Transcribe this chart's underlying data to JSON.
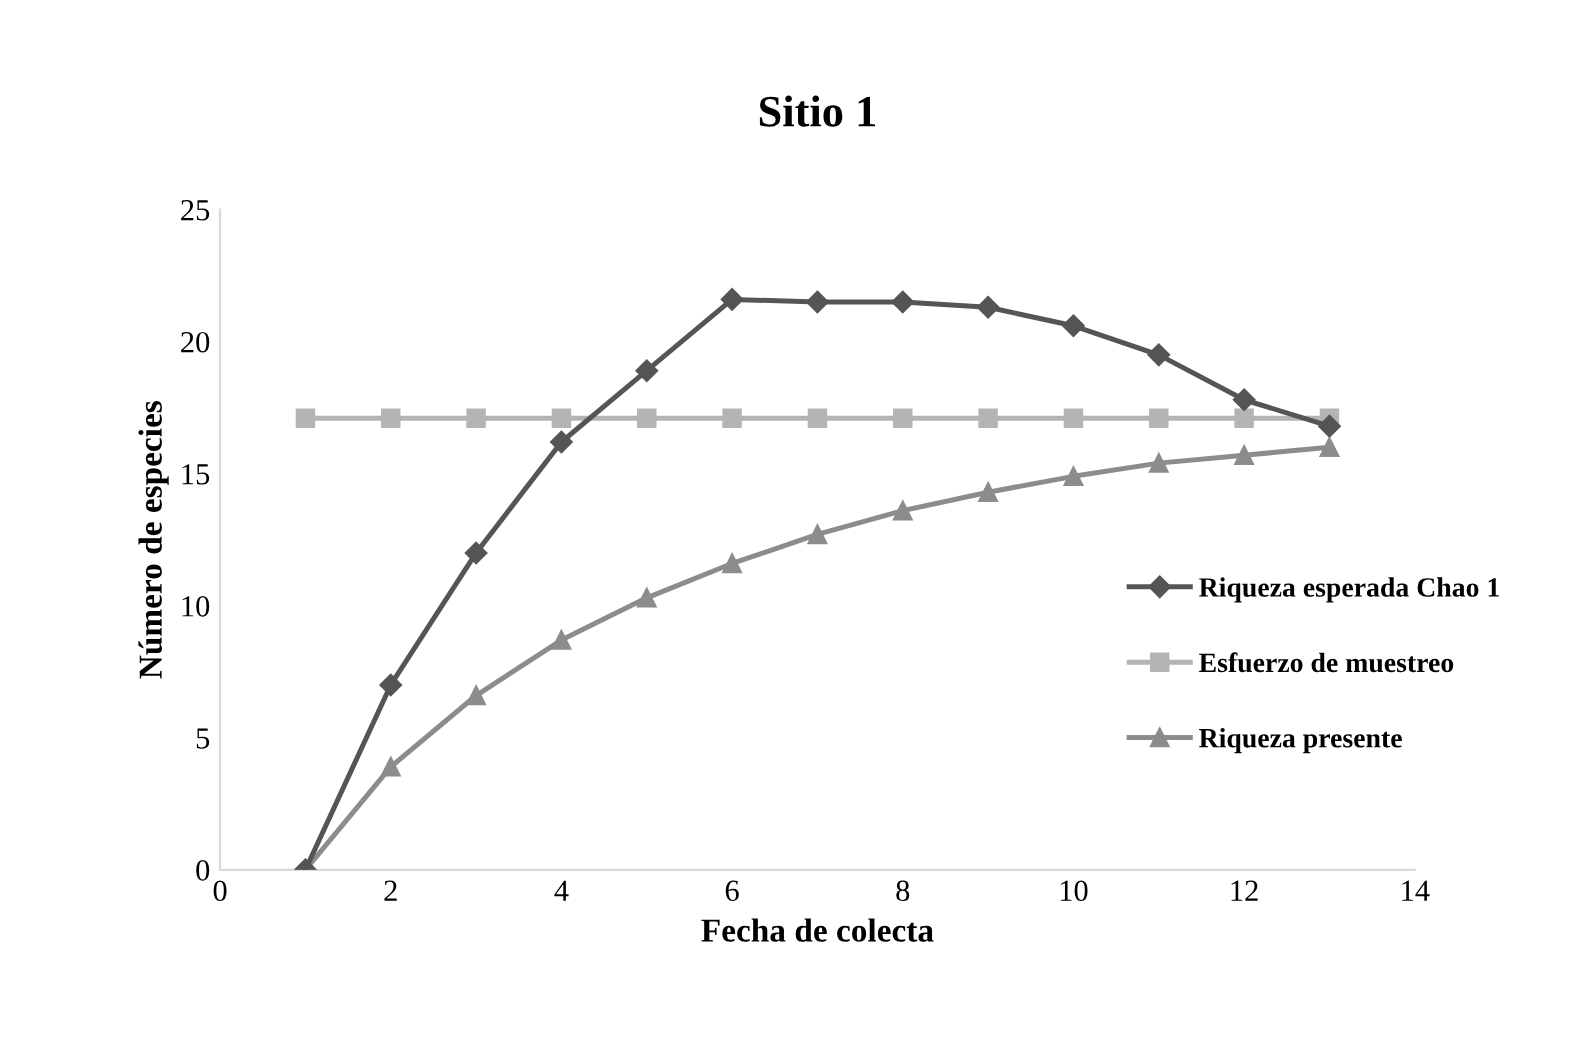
{
  "chart_data": {
    "type": "line",
    "title": "Sitio 1",
    "xlabel": "Fecha de colecta",
    "ylabel": "Número de especies",
    "x": [
      1,
      2,
      3,
      4,
      5,
      6,
      7,
      8,
      9,
      10,
      11,
      12,
      13
    ],
    "series": [
      {
        "name": "Riqueza esperada Chao 1",
        "color": "#555555",
        "marker": "diamond",
        "values": [
          0,
          7,
          12,
          16.2,
          18.9,
          21.6,
          21.5,
          21.5,
          21.3,
          20.6,
          19.5,
          17.8,
          16.8
        ]
      },
      {
        "name": "Esfuerzo de muestreo",
        "color": "#b4b4b4",
        "marker": "square",
        "values": [
          17.1,
          17.1,
          17.1,
          17.1,
          17.1,
          17.1,
          17.1,
          17.1,
          17.1,
          17.1,
          17.1,
          17.1,
          17.1
        ]
      },
      {
        "name": "Riqueza presente",
        "color": "#8c8c8c",
        "marker": "triangle",
        "values": [
          0,
          3.9,
          6.6,
          8.7,
          10.3,
          11.6,
          12.7,
          13.6,
          14.3,
          14.9,
          15.4,
          15.7,
          16.0
        ]
      }
    ],
    "xlim": [
      0,
      14
    ],
    "xticks": [
      0,
      2,
      4,
      6,
      8,
      10,
      12,
      14
    ],
    "ylim": [
      0,
      25
    ],
    "yticks": [
      0,
      5,
      10,
      15,
      20,
      25
    ],
    "grid": false,
    "legend": "right",
    "line_style": "solid"
  }
}
